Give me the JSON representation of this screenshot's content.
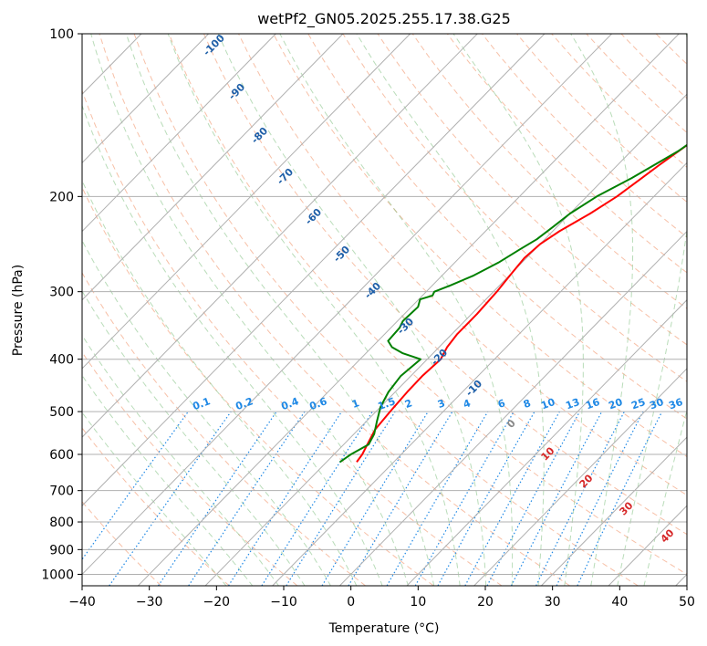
{
  "chart_data": {
    "type": "line",
    "subtype": "skew-t log-p diagram",
    "title": "wetPf2_GN05.2025.255.17.38.G25",
    "xlabel": "Temperature (°C)",
    "ylabel": "Pressure (hPa)",
    "xlim": [
      -40,
      50
    ],
    "ylim": [
      1050,
      100
    ],
    "y_scale": "log",
    "x_ticks": [
      -40,
      -30,
      -20,
      -10,
      0,
      10,
      20,
      30,
      40,
      50
    ],
    "y_ticks": [
      100,
      200,
      300,
      400,
      500,
      600,
      700,
      800,
      900,
      1000
    ],
    "grid": true,
    "series": [
      {
        "color": "#ff0000",
        "points": [
          [
            -15.5,
            620
          ],
          [
            -15.8,
            600
          ],
          [
            -16.5,
            575
          ],
          [
            -17.5,
            540
          ],
          [
            -17.9,
            500
          ],
          [
            -18.2,
            460
          ],
          [
            -18.3,
            430
          ],
          [
            -18.0,
            400
          ],
          [
            -18.8,
            380
          ],
          [
            -19.2,
            360
          ],
          [
            -19.2,
            330
          ],
          [
            -19.5,
            300
          ],
          [
            -19.9,
            280
          ],
          [
            -20.3,
            260
          ],
          [
            -20.0,
            245
          ],
          [
            -19.0,
            232
          ],
          [
            -17.0,
            215
          ],
          [
            -15.5,
            200
          ],
          [
            -14.5,
            185
          ],
          [
            -13.8,
            175
          ],
          [
            -12.5,
            160
          ],
          [
            -11.0,
            150
          ],
          [
            -9.5,
            140
          ],
          [
            -8.5,
            132
          ],
          [
            -7.5,
            124
          ],
          [
            -5.8,
            118
          ],
          [
            -4.0,
            112
          ],
          [
            -2.0,
            108
          ],
          [
            0.0,
            105
          ],
          [
            2.5,
            100
          ]
        ]
      },
      {
        "color": "#008000",
        "points": [
          [
            -18.0,
            620
          ],
          [
            -17.5,
            600
          ],
          [
            -16.3,
            575
          ],
          [
            -17.0,
            550
          ],
          [
            -18.5,
            520
          ],
          [
            -20.0,
            490
          ],
          [
            -21.0,
            460
          ],
          [
            -21.5,
            430
          ],
          [
            -21.0,
            400
          ],
          [
            -24.5,
            390
          ],
          [
            -27.0,
            380
          ],
          [
            -28.5,
            370
          ],
          [
            -28.7,
            350
          ],
          [
            -29.2,
            340
          ],
          [
            -29.0,
            320
          ],
          [
            -29.8,
            310
          ],
          [
            -28.5,
            305
          ],
          [
            -28.8,
            300
          ],
          [
            -27.3,
            292
          ],
          [
            -25.3,
            280
          ],
          [
            -23.5,
            265
          ],
          [
            -22.2,
            250
          ],
          [
            -21.2,
            240
          ],
          [
            -20.6,
            228
          ],
          [
            -20.0,
            215
          ],
          [
            -18.5,
            200
          ],
          [
            -16.0,
            185
          ],
          [
            -13.0,
            165
          ],
          [
            -11.5,
            150
          ],
          [
            -10.0,
            140
          ],
          [
            -9.3,
            130
          ],
          [
            -9.0,
            125
          ],
          [
            -8.0,
            118
          ],
          [
            -6.0,
            112
          ],
          [
            -5.8,
            105
          ],
          [
            -5.5,
            100
          ]
        ]
      }
    ],
    "dry_adiabat_labels": [
      "-100",
      "-90",
      "-80",
      "-70",
      "-60",
      "-50",
      "-40",
      "-30",
      "-20",
      "-10"
    ],
    "mixing_ratio_labels": [
      "0.1",
      "0.2",
      "0.4",
      "0.6",
      "1",
      "1.5",
      "2",
      "3",
      "4",
      "6",
      "8",
      "10",
      "13",
      "16",
      "20",
      "25",
      "30",
      "36"
    ],
    "moist_adiabat_labels": [
      "10",
      "20",
      "30",
      "40"
    ],
    "zero_label": "0"
  }
}
